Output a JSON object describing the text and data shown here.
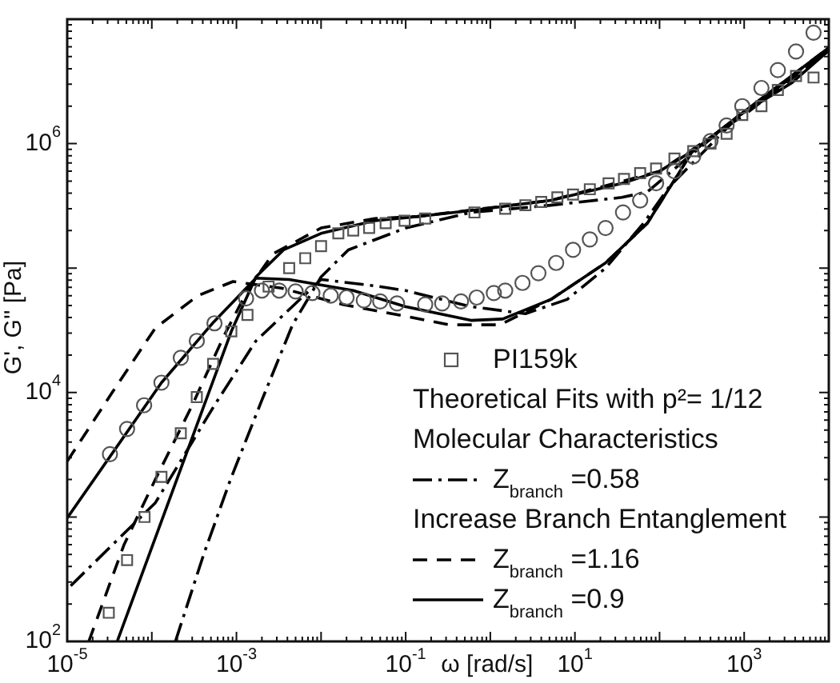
{
  "chart_data": {
    "type": "scatter",
    "xlabel": "ω [rad/s]",
    "ylabel": "G', G'' [Pa]",
    "log": "xy",
    "xlim": [
      1e-05,
      10000.0
    ],
    "ylim": [
      100,
      10000000.0
    ],
    "xticks": [
      {
        "value": 1e-05,
        "label": "10$^{-5}$"
      },
      {
        "value": 0.0001,
        "label": null
      },
      {
        "value": 0.001,
        "label": "10$^{-3}$"
      },
      {
        "value": 0.01,
        "label": null
      },
      {
        "value": 0.1,
        "label": "10$^{-1}$"
      },
      {
        "value": 1,
        "label": null
      },
      {
        "value": 10,
        "label": "10$^{1}$"
      },
      {
        "value": 100,
        "label": null
      },
      {
        "value": 1000,
        "label": "10$^{3}$"
      },
      {
        "value": 10000,
        "label": null
      }
    ],
    "yticks": [
      {
        "value": 100,
        "label": "10$^{2}$"
      },
      {
        "value": 1000,
        "label": null
      },
      {
        "value": 10000,
        "label": "10$^{4}$"
      },
      {
        "value": 100000,
        "label": null
      },
      {
        "value": 1000000,
        "label": "10$^{6}$"
      },
      {
        "value": 10000000,
        "label": null
      }
    ],
    "grid": false,
    "legend": "bottom right",
    "annotations": [
      "Theoretical Fits with p²= 1/12",
      "Molecular Characteristics",
      "Increase Branch Entanglement"
    ],
    "series": [
      {
        "name": "PI159k",
        "marker": "square",
        "color": "#555555",
        "x": [
          3.1e-05,
          5.1e-05,
          8.2e-05,
          0.00013,
          0.00022,
          0.00034,
          0.00053,
          0.00087,
          0.00135,
          0.0024,
          0.0042,
          0.0065,
          0.01,
          0.016,
          0.024,
          0.037,
          0.058,
          0.097,
          0.17,
          0.65,
          1.5,
          2.6,
          4.0,
          6.2,
          9.5,
          15,
          25,
          38,
          59,
          91,
          150,
          250,
          400,
          620,
          950,
          1600,
          2500,
          4100,
          6600
        ],
        "values": [
          170,
          450,
          1000,
          2100,
          4700,
          9200,
          17000,
          31000,
          42000,
          71000,
          100000,
          120000,
          150000,
          190000,
          200000,
          210000,
          230000,
          240000,
          250000,
          280000,
          300000,
          320000,
          340000,
          370000,
          390000,
          430000,
          480000,
          520000,
          580000,
          630000,
          760000,
          870000,
          1000000,
          1200000,
          1700000,
          2000000,
          2700000,
          3500000,
          3400000
        ]
      },
      {
        "marker": "circle",
        "color": "#555555",
        "x": [
          3.2e-05,
          5.1e-05,
          8.1e-05,
          0.00013,
          0.00022,
          0.00034,
          0.00055,
          0.0013,
          0.002,
          0.0032,
          0.005,
          0.0079,
          0.013,
          0.02,
          0.032,
          0.05,
          0.079,
          0.17,
          0.27,
          0.45,
          0.69,
          1.1,
          1.5,
          2.4,
          3.7,
          6.0,
          9.5,
          15,
          23,
          37,
          59,
          91,
          150,
          250,
          400,
          620,
          950,
          1600,
          2500,
          4100,
          6600
        ],
        "values": [
          3200,
          5100,
          7900,
          12000,
          19000,
          26000,
          36000,
          57000,
          66000,
          66000,
          65000,
          63000,
          60000,
          58000,
          55000,
          54000,
          52000,
          51000,
          52000,
          54000,
          58000,
          63000,
          66000,
          76000,
          91000,
          110000,
          140000,
          170000,
          210000,
          280000,
          350000,
          480000,
          600000,
          790000,
          1050000,
          1400000,
          2000000,
          2800000,
          3900000,
          5500000,
          7800000
        ]
      },
      {
        "name": "Z$_{branch}$ =0.58",
        "type": "line",
        "line_style": "dashdot",
        "marker": "none",
        "color": "#000000",
        "x": [
          0.00019,
          0.00041,
          0.00085,
          0.002,
          0.0046,
          0.01,
          0.021,
          0.1,
          0.59,
          5.2,
          36,
          72,
          200,
          890,
          10000
        ],
        "values": [
          100,
          500,
          2000,
          8700,
          35000,
          85000,
          140000,
          210000,
          280000,
          320000,
          370000,
          410000,
          740000,
          1700000,
          5600000
        ]
      },
      {
        "type": "line",
        "line_style": "dashdot",
        "marker": "none",
        "color": "#000000",
        "x": [
          1.1e-05,
          0.00011,
          0.00055,
          0.0017,
          0.01,
          0.043,
          0.1,
          0.59,
          2.6,
          8.1,
          23,
          65,
          130,
          890,
          10000
        ],
        "values": [
          280,
          1300,
          7900,
          26000,
          81000,
          72000,
          66000,
          49000,
          43000,
          56000,
          100000,
          230000,
          450000,
          1700000,
          5600000
        ]
      },
      {
        "name": "Z$_{branch}$ =1.16",
        "type": "line",
        "line_style": "dashed",
        "marker": "none",
        "color": "#000000",
        "x": [
          1.8e-05,
          4.7e-05,
          0.00011,
          0.0003,
          0.00072,
          0.0014,
          0.0027,
          0.01,
          0.043,
          0.14,
          5.2,
          100,
          1000,
          10000
        ],
        "values": [
          100,
          600,
          2000,
          7900,
          29000,
          69000,
          130000,
          210000,
          250000,
          260000,
          350000,
          600000,
          1700000,
          5600000
        ]
      },
      {
        "type": "line",
        "line_style": "dashed",
        "marker": "none",
        "color": "#000000",
        "x": [
          1e-05,
          3.4e-05,
          0.00011,
          0.00035,
          0.00091,
          0.0034,
          0.018,
          0.1,
          0.33,
          1.3,
          5.2,
          23,
          72,
          240,
          890,
          10000
        ],
        "values": [
          2800,
          10000,
          33000,
          60000,
          78000,
          69000,
          51000,
          41000,
          35000,
          35000,
          56000,
          110000,
          230000,
          850000,
          1700000,
          5900000
        ]
      },
      {
        "name": "Z$_{branch}$ =0.9",
        "type": "line",
        "line_style": "solid",
        "marker": "none",
        "color": "#000000",
        "x": [
          3.9e-05,
          0.00087,
          0.0017,
          0.0036,
          0.01,
          0.043,
          0.14,
          0.59,
          5.2,
          36,
          100,
          270,
          890,
          3700,
          10000
        ],
        "values": [
          100,
          31000,
          85000,
          140000,
          190000,
          240000,
          260000,
          290000,
          350000,
          480000,
          600000,
          910000,
          1700000,
          3100000,
          5600000
        ]
      },
      {
        "type": "line",
        "line_style": "solid",
        "marker": "none",
        "color": "#000000",
        "x": [
          1e-05,
          0.00013,
          0.00054,
          0.0017,
          0.0042,
          0.024,
          0.1,
          0.25,
          0.59,
          1.4,
          5.2,
          23,
          72,
          240,
          890,
          10000
        ],
        "values": [
          980,
          12000,
          37000,
          83000,
          81000,
          66000,
          49000,
          43000,
          38000,
          39000,
          56000,
          110000,
          230000,
          850000,
          1700000,
          5900000
        ]
      }
    ]
  }
}
